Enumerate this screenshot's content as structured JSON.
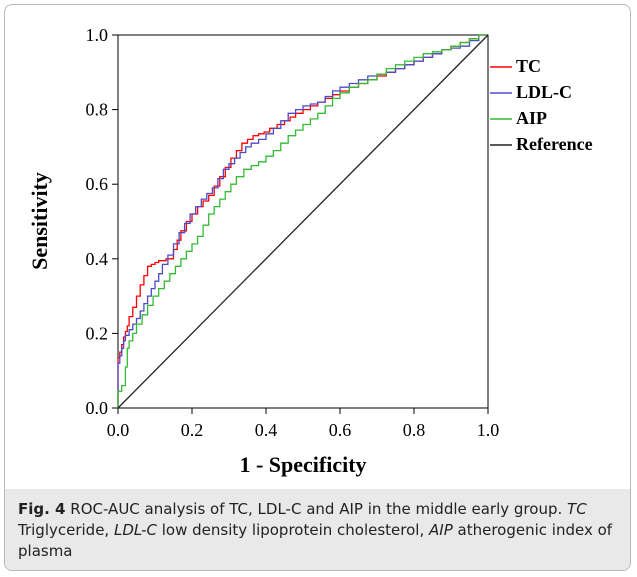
{
  "chart_data": {
    "type": "line",
    "title": "",
    "xlabel": "1 - Specificity",
    "ylabel": "Sensitivity",
    "xlim": [
      0.0,
      1.0
    ],
    "ylim": [
      0.0,
      1.0
    ],
    "xticks": [
      "0.0",
      "0.2",
      "0.4",
      "0.6",
      "0.8",
      "1.0"
    ],
    "yticks": [
      "0.0",
      "0.2",
      "0.4",
      "0.6",
      "0.8",
      "1.0"
    ],
    "grid": false,
    "legend_position": "right",
    "series": [
      {
        "name": "TC",
        "color": "#ff0000",
        "points": [
          [
            0,
            0
          ],
          [
            0,
            0.12
          ],
          [
            0.01,
            0.15
          ],
          [
            0.02,
            0.19
          ],
          [
            0.03,
            0.22
          ],
          [
            0.05,
            0.27
          ],
          [
            0.07,
            0.33
          ],
          [
            0.09,
            0.38
          ],
          [
            0.11,
            0.39
          ],
          [
            0.15,
            0.4
          ],
          [
            0.17,
            0.45
          ],
          [
            0.2,
            0.5
          ],
          [
            0.23,
            0.54
          ],
          [
            0.26,
            0.57
          ],
          [
            0.29,
            0.62
          ],
          [
            0.32,
            0.67
          ],
          [
            0.35,
            0.71
          ],
          [
            0.38,
            0.73
          ],
          [
            0.41,
            0.74
          ],
          [
            0.45,
            0.76
          ],
          [
            0.48,
            0.78
          ],
          [
            0.52,
            0.8
          ],
          [
            0.56,
            0.82
          ],
          [
            0.6,
            0.84
          ],
          [
            0.65,
            0.86
          ],
          [
            0.7,
            0.88
          ],
          [
            0.75,
            0.9
          ],
          [
            0.8,
            0.92
          ],
          [
            0.85,
            0.94
          ],
          [
            0.9,
            0.96
          ],
          [
            0.95,
            0.98
          ],
          [
            1.0,
            1.0
          ]
        ]
      },
      {
        "name": "LDL-C",
        "color": "#4b4bc8",
        "points": [
          [
            0,
            0
          ],
          [
            0,
            0.1
          ],
          [
            0.01,
            0.14
          ],
          [
            0.02,
            0.18
          ],
          [
            0.04,
            0.21
          ],
          [
            0.06,
            0.24
          ],
          [
            0.08,
            0.28
          ],
          [
            0.1,
            0.32
          ],
          [
            0.12,
            0.36
          ],
          [
            0.15,
            0.41
          ],
          [
            0.18,
            0.47
          ],
          [
            0.21,
            0.52
          ],
          [
            0.24,
            0.56
          ],
          [
            0.27,
            0.59
          ],
          [
            0.3,
            0.64
          ],
          [
            0.33,
            0.67
          ],
          [
            0.36,
            0.7
          ],
          [
            0.4,
            0.72
          ],
          [
            0.44,
            0.75
          ],
          [
            0.48,
            0.79
          ],
          [
            0.52,
            0.81
          ],
          [
            0.56,
            0.82
          ],
          [
            0.6,
            0.85
          ],
          [
            0.65,
            0.87
          ],
          [
            0.7,
            0.89
          ],
          [
            0.75,
            0.9
          ],
          [
            0.8,
            0.92
          ],
          [
            0.85,
            0.94
          ],
          [
            0.9,
            0.96
          ],
          [
            0.95,
            0.97
          ],
          [
            1.0,
            1.0
          ]
        ]
      },
      {
        "name": "AIP",
        "color": "#33bb33",
        "points": [
          [
            0,
            0
          ],
          [
            0,
            0.03
          ],
          [
            0.02,
            0.06
          ],
          [
            0.03,
            0.16
          ],
          [
            0.05,
            0.2
          ],
          [
            0.08,
            0.25
          ],
          [
            0.11,
            0.3
          ],
          [
            0.14,
            0.34
          ],
          [
            0.17,
            0.38
          ],
          [
            0.2,
            0.42
          ],
          [
            0.23,
            0.46
          ],
          [
            0.26,
            0.52
          ],
          [
            0.29,
            0.56
          ],
          [
            0.32,
            0.6
          ],
          [
            0.36,
            0.64
          ],
          [
            0.4,
            0.66
          ],
          [
            0.44,
            0.69
          ],
          [
            0.48,
            0.73
          ],
          [
            0.52,
            0.76
          ],
          [
            0.56,
            0.79
          ],
          [
            0.6,
            0.83
          ],
          [
            0.65,
            0.86
          ],
          [
            0.7,
            0.88
          ],
          [
            0.75,
            0.91
          ],
          [
            0.8,
            0.93
          ],
          [
            0.85,
            0.95
          ],
          [
            0.9,
            0.96
          ],
          [
            0.95,
            0.98
          ],
          [
            1.0,
            1.0
          ]
        ]
      },
      {
        "name": "Reference",
        "color": "#222222",
        "points": [
          [
            0,
            0
          ],
          [
            1,
            1
          ]
        ]
      }
    ]
  },
  "caption": {
    "fig_label": "Fig. 4",
    "intro": "ROC-AUC analysis of TC, LDL-C and AIP in the middle early group.",
    "abbr1": "TC",
    "def1": "Triglyceride,",
    "abbr2": "LDL-C",
    "def2": "low density lipoprotein cholesterol,",
    "abbr3": "AIP",
    "def3": "atherogenic index of plasma"
  }
}
